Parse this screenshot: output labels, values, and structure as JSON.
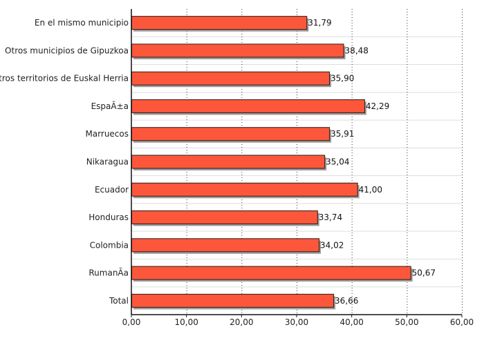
{
  "chart_data": {
    "type": "bar",
    "orientation": "horizontal",
    "categories": [
      "En el mismo municipio",
      "Otros municipios de Gipuzkoa",
      "Otros territorios de Euskal Herria",
      "EspaÃ±a",
      "Marruecos",
      "Nikaragua",
      "Ecuador",
      "Honduras",
      "Colombia",
      "RumanÃ­a",
      "Total"
    ],
    "values": [
      31.79,
      38.48,
      35.9,
      42.29,
      35.91,
      35.04,
      41.0,
      33.74,
      34.02,
      50.67,
      36.66
    ],
    "value_labels": [
      "31,79",
      "38,48",
      "35,90",
      "42,29",
      "35,91",
      "35,04",
      "41,00",
      "33,74",
      "34,02",
      "50,67",
      "36,66"
    ],
    "xlim": [
      0,
      60
    ],
    "xticks": [
      0,
      10,
      20,
      30,
      40,
      50,
      60
    ],
    "xtick_labels": [
      "0,00",
      "10,00",
      "20,00",
      "30,00",
      "40,00",
      "50,00",
      "60,00"
    ],
    "grid": "vertical dotted",
    "colors": {
      "bar_fill": "#fc573b",
      "bar_stroke": "#2a1a16",
      "bar_shadow": "#9b9b9b",
      "grid": "#333333",
      "row_separator": "#dddddd",
      "axis": "#111111"
    }
  }
}
